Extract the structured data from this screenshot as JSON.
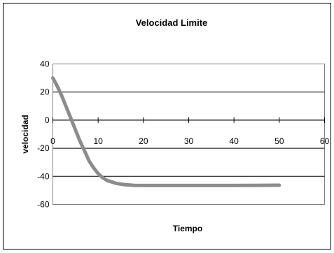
{
  "chart_data": {
    "type": "line",
    "title": "Velocidad Limite",
    "xlabel": "Tiempo",
    "ylabel": "velocidad",
    "xlim": [
      0,
      60
    ],
    "ylim": [
      -60,
      40
    ],
    "xticks": [
      "0",
      "10",
      "20",
      "30",
      "40",
      "50",
      "60"
    ],
    "yticks": [
      "40",
      "20",
      "0",
      "-20",
      "-40",
      "-60"
    ],
    "grid": "horizontal",
    "series": [
      {
        "color": "#8c8c8c",
        "x": [
          0,
          1,
          2,
          3,
          4,
          5,
          6,
          7,
          8,
          9,
          10,
          11,
          12,
          13,
          14,
          15,
          16,
          17,
          18,
          20,
          22,
          25,
          30,
          35,
          40,
          45,
          50
        ],
        "y": [
          30,
          24,
          17,
          9,
          1,
          -7,
          -15,
          -22,
          -29,
          -34,
          -38,
          -41,
          -43,
          -44,
          -45,
          -45.5,
          -46,
          -46.2,
          -46.4,
          -46.5,
          -46.5,
          -46.5,
          -46.5,
          -46.5,
          -46.5,
          -46.4,
          -46.3
        ]
      }
    ]
  }
}
